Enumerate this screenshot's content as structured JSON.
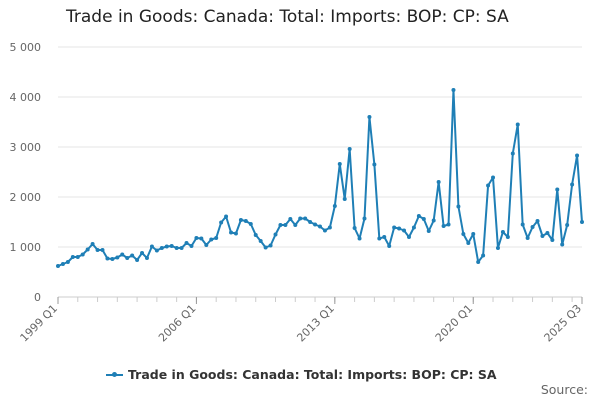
{
  "chart_data": {
    "type": "line",
    "title": "Trade in Goods: Canada: Total: Imports: BOP: CP: SA",
    "xlabel": "",
    "ylabel": "",
    "ylim": [
      0,
      5000
    ],
    "yticks": [
      0,
      1000,
      2000,
      3000,
      4000,
      5000
    ],
    "ytick_labels": [
      "0",
      "1 000",
      "2 000",
      "3 000",
      "4 000",
      "5 000"
    ],
    "xticks": [
      "1999 Q1",
      "2006 Q1",
      "2013 Q1",
      "2020 Q1",
      "2025 Q3"
    ],
    "grid": "horizontal",
    "legend_position": "bottom",
    "source_label": "Source:",
    "color": "#1f7fb6",
    "series": [
      {
        "name": "Trade in Goods: Canada: Total: Imports: BOP: CP: SA",
        "x": [
          "1999 Q1",
          "1999 Q2",
          "1999 Q3",
          "1999 Q4",
          "2000 Q1",
          "2000 Q2",
          "2000 Q3",
          "2000 Q4",
          "2001 Q1",
          "2001 Q2",
          "2001 Q3",
          "2001 Q4",
          "2002 Q1",
          "2002 Q2",
          "2002 Q3",
          "2002 Q4",
          "2003 Q1",
          "2003 Q2",
          "2003 Q3",
          "2003 Q4",
          "2004 Q1",
          "2004 Q2",
          "2004 Q3",
          "2004 Q4",
          "2005 Q1",
          "2005 Q2",
          "2005 Q3",
          "2005 Q4",
          "2006 Q1",
          "2006 Q2",
          "2006 Q3",
          "2006 Q4",
          "2007 Q1",
          "2007 Q2",
          "2007 Q3",
          "2007 Q4",
          "2008 Q1",
          "2008 Q2",
          "2008 Q3",
          "2008 Q4",
          "2009 Q1",
          "2009 Q2",
          "2009 Q3",
          "2009 Q4",
          "2010 Q1",
          "2010 Q2",
          "2010 Q3",
          "2010 Q4",
          "2011 Q1",
          "2011 Q2",
          "2011 Q3",
          "2011 Q4",
          "2012 Q1",
          "2012 Q2",
          "2012 Q3",
          "2012 Q4",
          "2013 Q1",
          "2013 Q2",
          "2013 Q3",
          "2013 Q4",
          "2014 Q1",
          "2014 Q2",
          "2014 Q3",
          "2014 Q4",
          "2015 Q1",
          "2015 Q2",
          "2015 Q3",
          "2015 Q4",
          "2016 Q1",
          "2016 Q2",
          "2016 Q3",
          "2016 Q4",
          "2017 Q1",
          "2017 Q2",
          "2017 Q3",
          "2017 Q4",
          "2018 Q1",
          "2018 Q2",
          "2018 Q3",
          "2018 Q4",
          "2019 Q1",
          "2019 Q2",
          "2019 Q3",
          "2019 Q4",
          "2020 Q1",
          "2020 Q2",
          "2020 Q3",
          "2020 Q4",
          "2021 Q1",
          "2021 Q2",
          "2021 Q3",
          "2021 Q4",
          "2022 Q1",
          "2022 Q2",
          "2022 Q3",
          "2022 Q4",
          "2023 Q1",
          "2023 Q2",
          "2023 Q3",
          "2023 Q4",
          "2024 Q1",
          "2024 Q2",
          "2024 Q3",
          "2024 Q4",
          "2025 Q1",
          "2025 Q2",
          "2025 Q3"
        ],
        "values": [
          620,
          660,
          700,
          800,
          800,
          850,
          950,
          1060,
          940,
          940,
          770,
          760,
          790,
          850,
          780,
          830,
          740,
          880,
          780,
          1010,
          930,
          980,
          1010,
          1020,
          980,
          980,
          1080,
          1020,
          1180,
          1170,
          1040,
          1150,
          1180,
          1490,
          1610,
          1290,
          1270,
          1540,
          1520,
          1460,
          1240,
          1120,
          990,
          1030,
          1250,
          1440,
          1440,
          1560,
          1440,
          1570,
          1570,
          1500,
          1450,
          1410,
          1330,
          1390,
          1820,
          2660,
          1960,
          2960,
          1380,
          1170,
          1570,
          3600,
          2650,
          1170,
          1200,
          1020,
          1390,
          1370,
          1330,
          1200,
          1390,
          1620,
          1560,
          1320,
          1530,
          2300,
          1420,
          1450,
          4140,
          1810,
          1260,
          1080,
          1260,
          700,
          830,
          2230,
          2390,
          980,
          1300,
          1200,
          2870,
          3450,
          1450,
          1180,
          1400,
          1520,
          1220,
          1280,
          1140,
          2150,
          1050,
          1440,
          2250,
          2830,
          1500
        ]
      }
    ]
  }
}
